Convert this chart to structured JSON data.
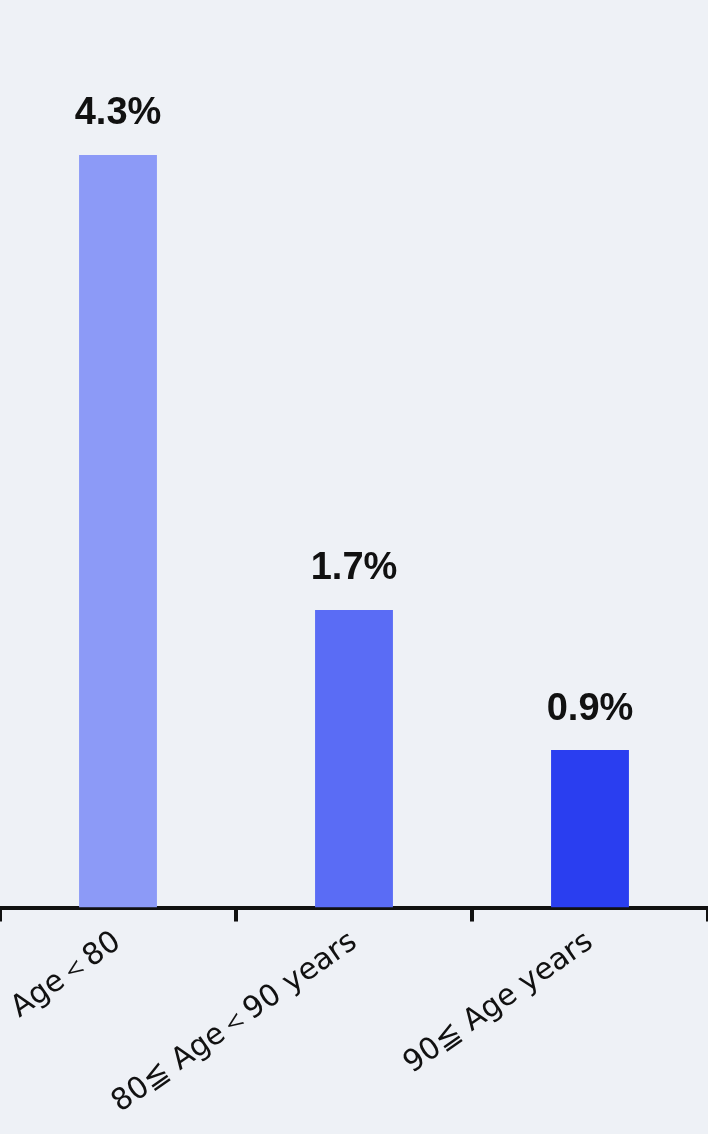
{
  "chart_data": {
    "type": "bar",
    "categories": [
      "Age＜80",
      "80≦ Age＜90 years",
      "90≦ Age years"
    ],
    "values": [
      4.3,
      1.7,
      0.9
    ],
    "value_labels": [
      "4.3%",
      "1.7%",
      "0.9%"
    ],
    "colors": [
      "#8c9af7",
      "#5a6cf5",
      "#2a3ef0"
    ],
    "legend": false,
    "grid": false
  }
}
